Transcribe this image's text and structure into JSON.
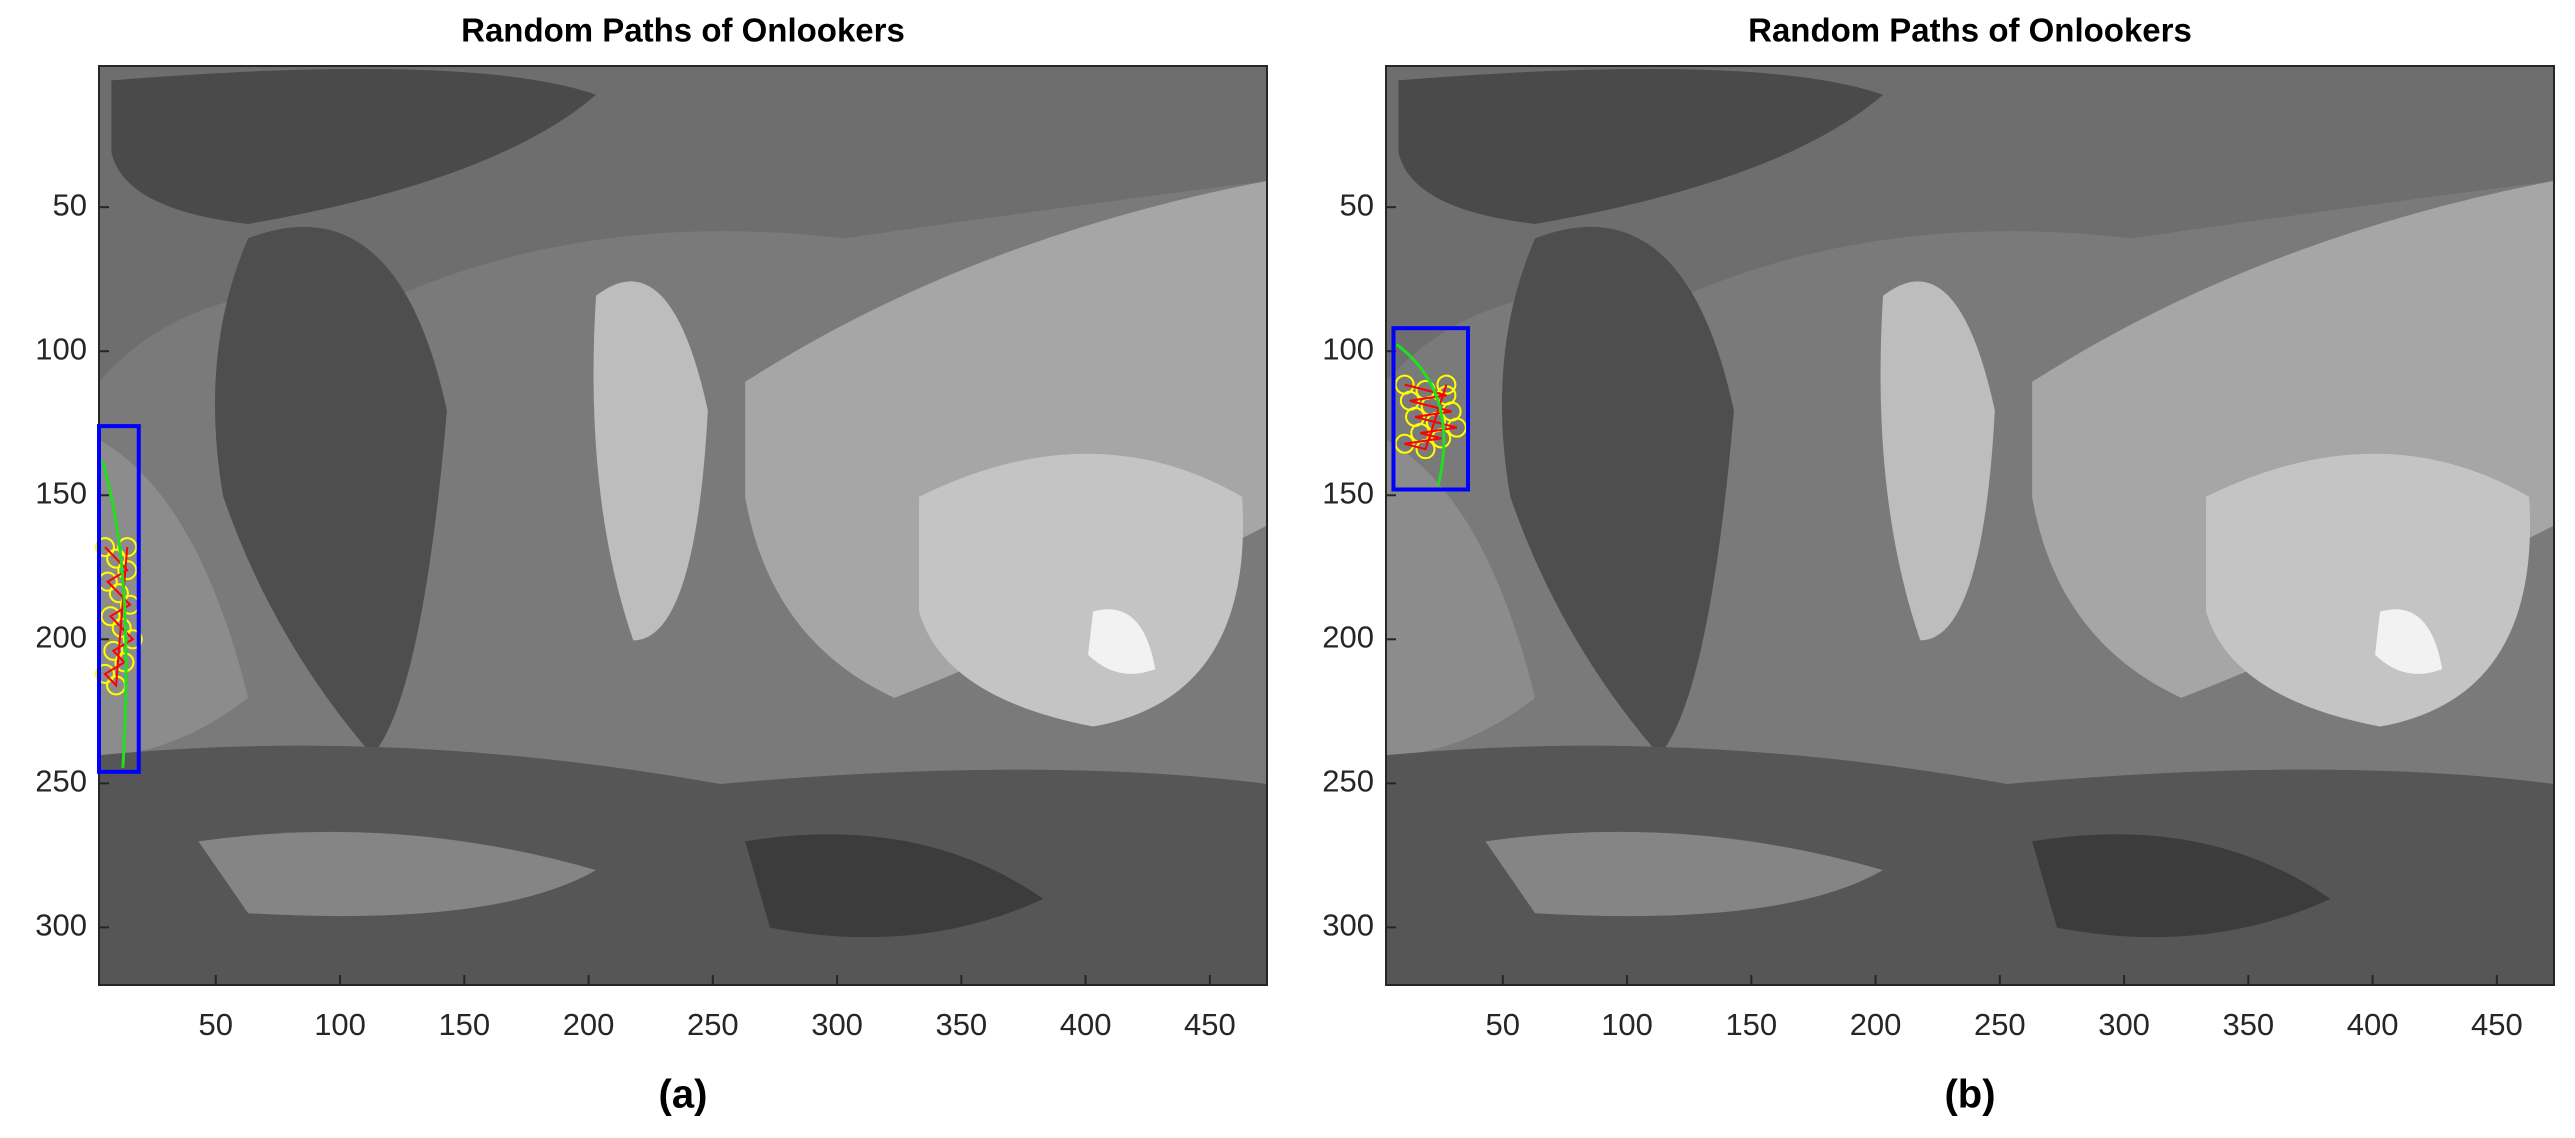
{
  "chart_data": [
    {
      "type": "image",
      "title": "Random Paths of Onlookers",
      "caption": "(a)",
      "xlim": [
        3,
        473
      ],
      "ylim": [
        1,
        320
      ],
      "xticks": [
        50,
        100,
        150,
        200,
        250,
        300,
        350,
        400,
        450
      ],
      "yticks": [
        50,
        100,
        150,
        200,
        250,
        300
      ],
      "box": {
        "x": [
          3,
          19
        ],
        "y": [
          126,
          246
        ],
        "color": "#0000ff"
      }
    },
    {
      "type": "image",
      "title": "Random Paths of Onlookers",
      "caption": "(b)",
      "xlim": [
        3,
        473
      ],
      "ylim": [
        1,
        320
      ],
      "xticks": [
        50,
        100,
        150,
        200,
        250,
        300,
        350,
        400,
        450
      ],
      "yticks": [
        50,
        100,
        150,
        200,
        250,
        300
      ],
      "box": {
        "x": [
          6,
          36
        ],
        "y": [
          92,
          148
        ],
        "color": "#0000ff"
      }
    }
  ]
}
